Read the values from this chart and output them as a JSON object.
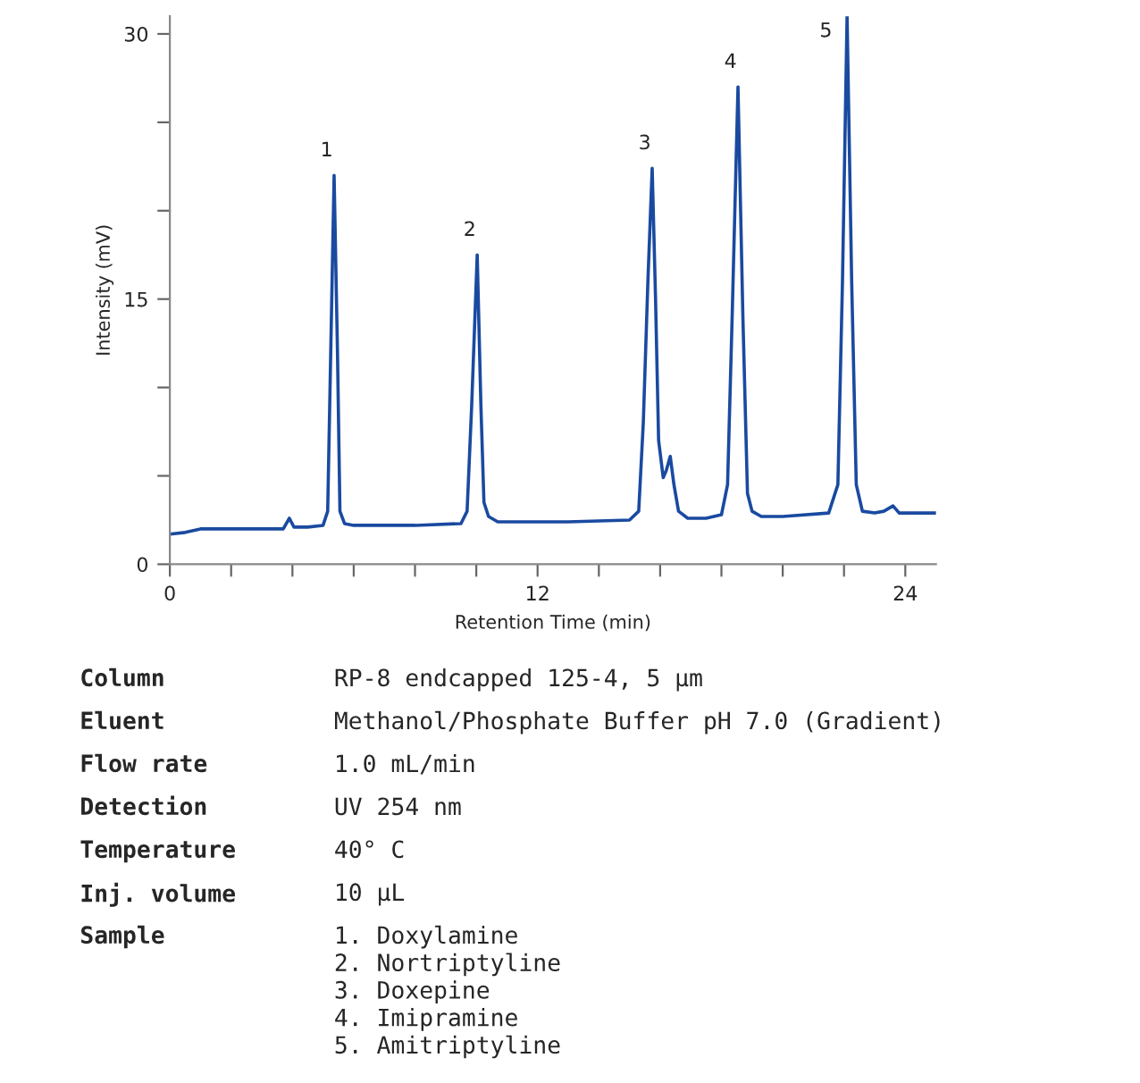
{
  "chart_data": {
    "type": "line",
    "xlabel": "Retention Time (min)",
    "ylabel": "Intensity (mV)",
    "xlim": [
      0,
      25
    ],
    "ylim": [
      0,
      31
    ],
    "xticks": [
      0,
      {
        "value": 2,
        "label": null
      },
      {
        "value": 4,
        "label": null
      },
      {
        "value": 6,
        "label": null
      },
      {
        "value": 8,
        "label": null
      },
      {
        "value": 10,
        "label": null
      },
      12,
      {
        "value": 14,
        "label": null
      },
      {
        "value": 16,
        "label": null
      },
      {
        "value": 18,
        "label": null
      },
      {
        "value": 20,
        "label": null
      },
      {
        "value": 22,
        "label": null
      },
      24
    ],
    "yticks": [
      0,
      {
        "value": 5,
        "label": null
      },
      {
        "value": 10,
        "label": null
      },
      15,
      {
        "value": 20,
        "label": null
      },
      {
        "value": 25,
        "label": null
      },
      30
    ],
    "grid": false,
    "marker": "none",
    "line_style": "solid",
    "series": [
      {
        "color": "#1a4aa0",
        "x": [
          0,
          0.5,
          1,
          2,
          3,
          3.7,
          3.9,
          4.05,
          4.5,
          5.0,
          5.15,
          5.25,
          5.36,
          5.47,
          5.55,
          5.7,
          6,
          8,
          9.5,
          9.7,
          9.85,
          10.03,
          10.15,
          10.25,
          10.4,
          10.7,
          11,
          13,
          15,
          15.3,
          15.45,
          15.6,
          15.74,
          15.85,
          15.95,
          16.1,
          16.2,
          16.33,
          16.45,
          16.6,
          16.9,
          17.5,
          18.0,
          18.2,
          18.35,
          18.54,
          18.7,
          18.85,
          19.0,
          19.3,
          20,
          21.5,
          21.8,
          21.95,
          22.1,
          22.25,
          22.4,
          22.6,
          23,
          23.3,
          23.6,
          23.8,
          24,
          25
        ],
        "values": [
          1.7,
          1.8,
          2.0,
          2.0,
          2.0,
          2.0,
          2.6,
          2.1,
          2.1,
          2.2,
          3.0,
          12,
          22.0,
          12,
          3.0,
          2.3,
          2.2,
          2.2,
          2.3,
          3.0,
          9,
          17.5,
          9,
          3.5,
          2.7,
          2.4,
          2.4,
          2.4,
          2.5,
          3.0,
          8,
          16,
          22.4,
          15,
          7,
          4.9,
          5.3,
          6.1,
          4.5,
          3.0,
          2.6,
          2.6,
          2.8,
          4.5,
          14,
          27.0,
          14,
          4.0,
          3.0,
          2.7,
          2.7,
          2.9,
          4.5,
          16,
          31.0,
          16,
          4.5,
          3.0,
          2.9,
          3.0,
          3.3,
          2.9,
          2.9,
          2.9
        ]
      }
    ],
    "annotations": [
      {
        "text": "1",
        "x": 5.36,
        "y": 22.0
      },
      {
        "text": "2",
        "x": 10.03,
        "y": 17.5
      },
      {
        "text": "3",
        "x": 15.74,
        "y": 22.4
      },
      {
        "text": "4",
        "x": 18.54,
        "y": 27.0
      },
      {
        "text": "5",
        "x": 22.1,
        "y": 31.0
      },
      "Column",
      "RP-8 endcapped 125-4, 5 µm",
      "Eluent",
      "Methanol/Phosphate Buffer pH 7.0 (Gradient)",
      "Flow rate",
      "1.0 mL/min",
      "Detection",
      "UV 254 nm",
      "Temperature",
      "40° C",
      "Inj. volume",
      "10 µL",
      "Sample",
      "1. Doxylamine\n2. Nortriptyline\n3. Doxepine\n4. Imipramine\n5. Amitriptyline"
    ]
  }
}
